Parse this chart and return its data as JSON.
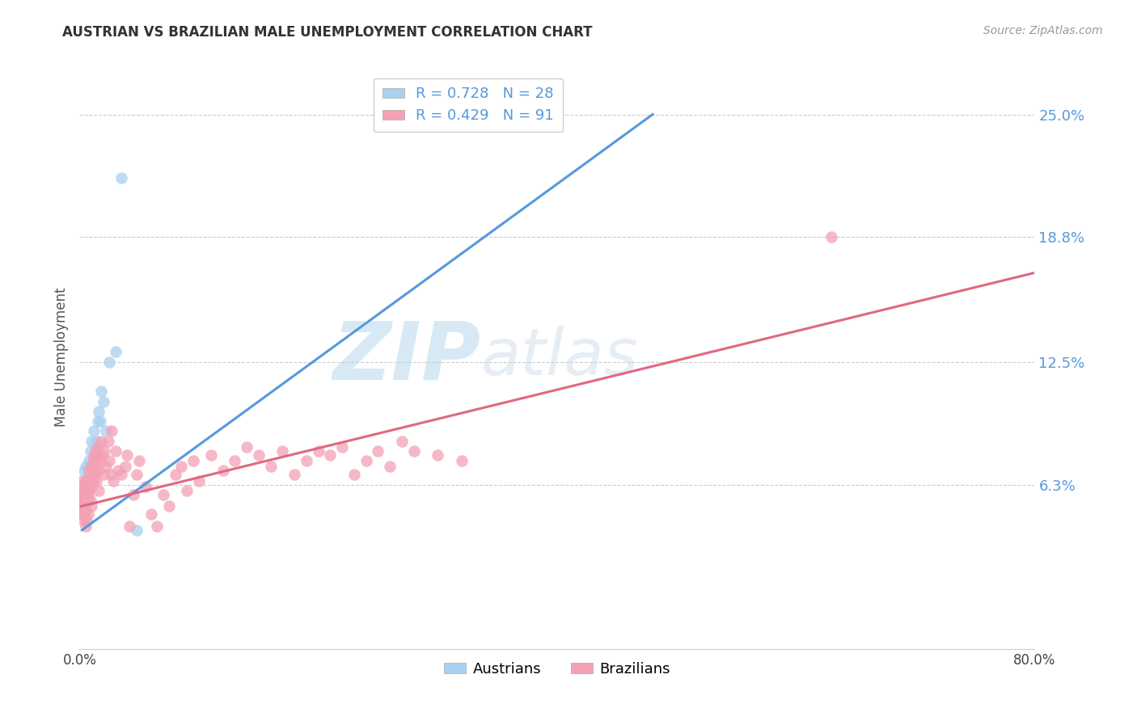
{
  "title": "AUSTRIAN VS BRAZILIAN MALE UNEMPLOYMENT CORRELATION CHART",
  "source": "Source: ZipAtlas.com",
  "ylabel": "Male Unemployment",
  "ytick_labels": [
    "6.3%",
    "12.5%",
    "18.8%",
    "25.0%"
  ],
  "ytick_values": [
    0.063,
    0.125,
    0.188,
    0.25
  ],
  "xlim": [
    0.0,
    0.8
  ],
  "ylim": [
    -0.02,
    0.275
  ],
  "legend_blue": "R = 0.728   N = 28",
  "legend_pink": "R = 0.429   N = 91",
  "watermark_zip": "ZIP",
  "watermark_atlas": "atlas",
  "blue_color": "#a8d0f0",
  "pink_color": "#f4a0b5",
  "blue_line_color": "#5599dd",
  "pink_line_color": "#e06880",
  "blue_line_x": [
    0.002,
    0.48
  ],
  "blue_line_y": [
    0.04,
    0.25
  ],
  "pink_line_x": [
    0.001,
    0.8
  ],
  "pink_line_y": [
    0.052,
    0.17
  ],
  "austrians_x": [
    0.002,
    0.003,
    0.004,
    0.004,
    0.005,
    0.005,
    0.006,
    0.007,
    0.007,
    0.008,
    0.008,
    0.009,
    0.01,
    0.01,
    0.011,
    0.012,
    0.013,
    0.014,
    0.015,
    0.016,
    0.017,
    0.018,
    0.02,
    0.022,
    0.025,
    0.03,
    0.035,
    0.048
  ],
  "austrians_y": [
    0.052,
    0.058,
    0.06,
    0.07,
    0.063,
    0.072,
    0.065,
    0.068,
    0.055,
    0.07,
    0.075,
    0.08,
    0.072,
    0.085,
    0.065,
    0.09,
    0.078,
    0.085,
    0.095,
    0.1,
    0.095,
    0.11,
    0.105,
    0.09,
    0.125,
    0.13,
    0.218,
    0.04
  ],
  "brazilians_x": [
    0.001,
    0.001,
    0.002,
    0.002,
    0.002,
    0.003,
    0.003,
    0.003,
    0.003,
    0.004,
    0.004,
    0.004,
    0.005,
    0.005,
    0.005,
    0.005,
    0.006,
    0.006,
    0.006,
    0.007,
    0.007,
    0.007,
    0.008,
    0.008,
    0.009,
    0.009,
    0.01,
    0.01,
    0.01,
    0.011,
    0.011,
    0.012,
    0.012,
    0.013,
    0.013,
    0.014,
    0.014,
    0.015,
    0.016,
    0.016,
    0.017,
    0.018,
    0.019,
    0.02,
    0.021,
    0.022,
    0.024,
    0.025,
    0.026,
    0.027,
    0.028,
    0.03,
    0.032,
    0.035,
    0.038,
    0.04,
    0.042,
    0.045,
    0.048,
    0.05,
    0.055,
    0.06,
    0.065,
    0.07,
    0.075,
    0.08,
    0.085,
    0.09,
    0.095,
    0.1,
    0.11,
    0.12,
    0.13,
    0.14,
    0.15,
    0.16,
    0.17,
    0.18,
    0.19,
    0.2,
    0.21,
    0.22,
    0.23,
    0.24,
    0.25,
    0.26,
    0.27,
    0.28,
    0.3,
    0.32,
    0.63
  ],
  "brazilians_y": [
    0.052,
    0.06,
    0.048,
    0.055,
    0.065,
    0.05,
    0.058,
    0.063,
    0.045,
    0.055,
    0.062,
    0.048,
    0.058,
    0.065,
    0.05,
    0.042,
    0.06,
    0.055,
    0.045,
    0.065,
    0.058,
    0.048,
    0.07,
    0.06,
    0.068,
    0.055,
    0.072,
    0.062,
    0.052,
    0.075,
    0.065,
    0.078,
    0.068,
    0.08,
    0.07,
    0.075,
    0.065,
    0.082,
    0.07,
    0.06,
    0.075,
    0.085,
    0.078,
    0.068,
    0.08,
    0.072,
    0.085,
    0.075,
    0.068,
    0.09,
    0.065,
    0.08,
    0.07,
    0.068,
    0.072,
    0.078,
    0.042,
    0.058,
    0.068,
    0.075,
    0.062,
    0.048,
    0.042,
    0.058,
    0.052,
    0.068,
    0.072,
    0.06,
    0.075,
    0.065,
    0.078,
    0.07,
    0.075,
    0.082,
    0.078,
    0.072,
    0.08,
    0.068,
    0.075,
    0.08,
    0.078,
    0.082,
    0.068,
    0.075,
    0.08,
    0.072,
    0.085,
    0.08,
    0.078,
    0.075,
    0.188
  ]
}
